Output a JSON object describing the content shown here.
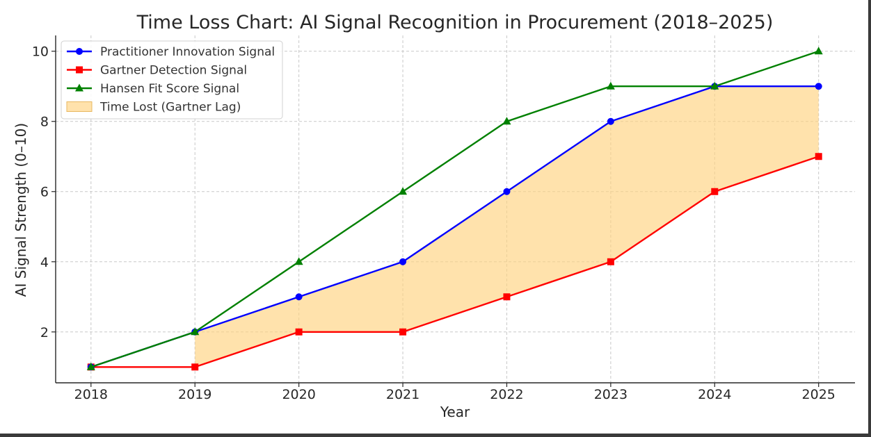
{
  "chart_data": {
    "type": "line",
    "title": "Time Loss Chart: AI Signal Recognition in Procurement (2018–2025)",
    "xlabel": "Year",
    "ylabel": "AI Signal Strength (0–10)",
    "x": [
      2018,
      2019,
      2020,
      2021,
      2022,
      2023,
      2024,
      2025
    ],
    "x_tick_labels": [
      "2018",
      "2019",
      "2020",
      "2021",
      "2022",
      "2023",
      "2024",
      "2025"
    ],
    "xlim": [
      2017.66,
      2025.35
    ],
    "ylim": [
      0.55,
      10.45
    ],
    "y_ticks": [
      2,
      4,
      6,
      8,
      10
    ],
    "y_tick_labels": [
      "2",
      "4",
      "6",
      "8",
      "10"
    ],
    "grid": true,
    "legend_position": "top-left",
    "series": [
      {
        "name": "Practitioner Innovation Signal",
        "color": "#0000ff",
        "marker": "circle",
        "values": [
          1,
          2,
          3,
          4,
          6,
          8,
          9,
          9
        ]
      },
      {
        "name": "Gartner Detection Signal",
        "color": "#ff0000",
        "marker": "square",
        "values": [
          1,
          1,
          2,
          2,
          3,
          4,
          6,
          7
        ]
      },
      {
        "name": "Hansen Fit Score Signal",
        "color": "#008000",
        "marker": "triangle",
        "values": [
          1,
          2,
          4,
          6,
          8,
          9,
          9,
          10
        ]
      }
    ],
    "fill_between": {
      "name": "Time Lost (Gartner Lag)",
      "upper_series": "Practitioner Innovation Signal",
      "lower_series": "Gartner Detection Signal",
      "x_from": 2019,
      "x_to": 2025,
      "color": "#ffd27f",
      "opacity": 0.65
    }
  }
}
